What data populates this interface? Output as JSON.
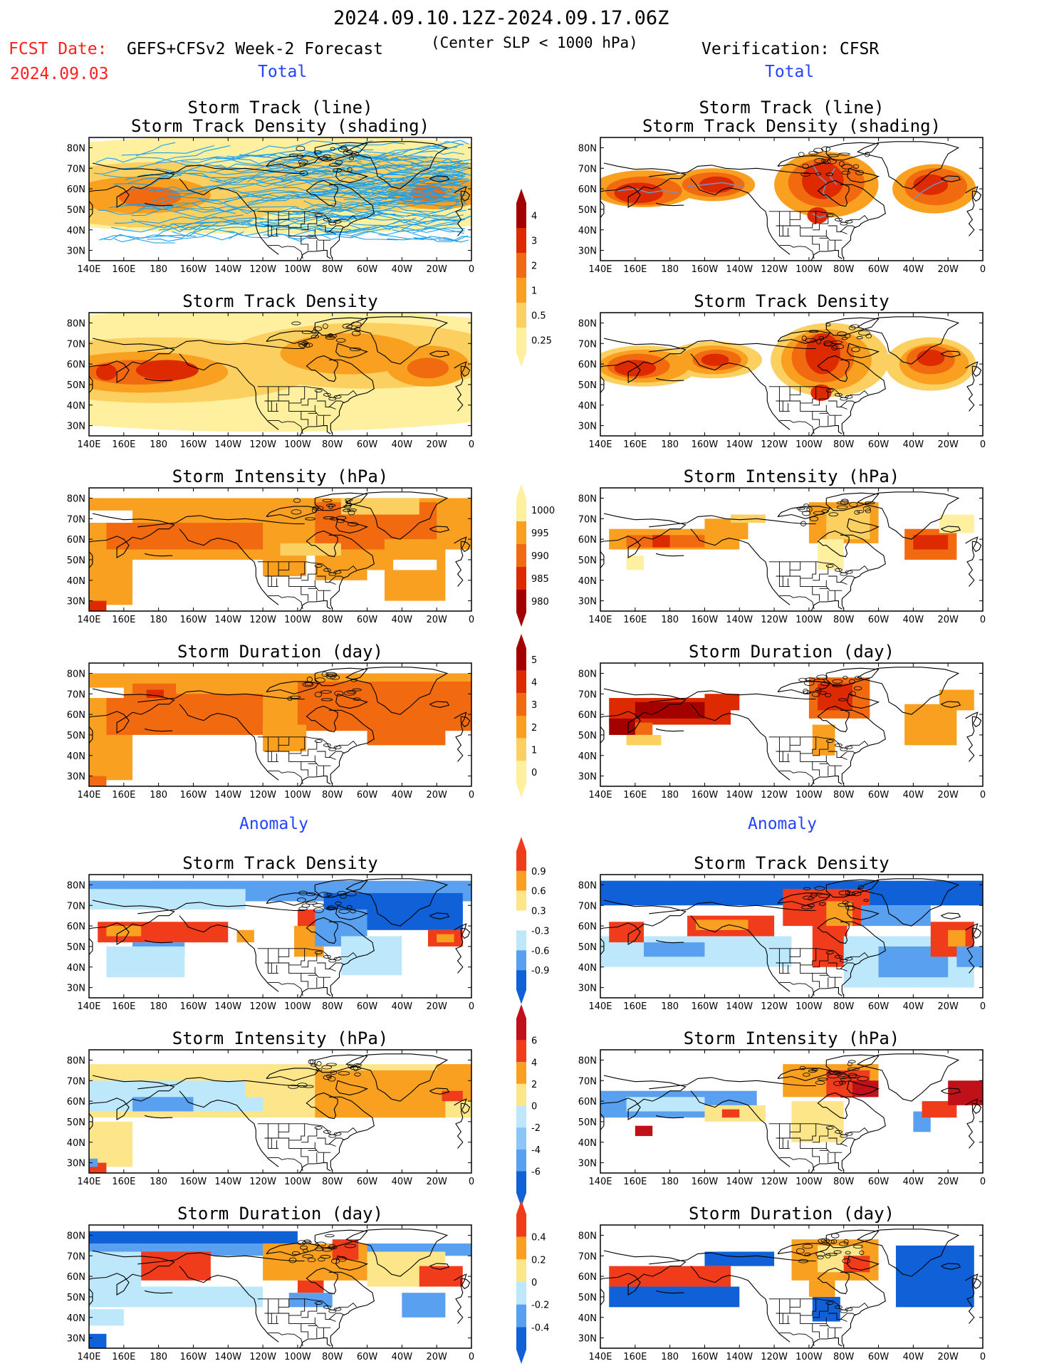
{
  "header": {
    "date_range": "2024.09.10.12Z-2024.09.17.06Z",
    "fcst_label": "FCST Date:",
    "forecast_title": "GEFS+CFSv2 Week-2 Forecast",
    "criterion": "(Center SLP < 1000 hPa)",
    "verification": "Verification: CFSR",
    "fcst_date": "2024.09.03",
    "total_left": "Total",
    "total_right": "Total",
    "anomaly_left": "Anomaly",
    "anomaly_right": "Anomaly"
  },
  "axes": {
    "lon_ticks": [
      "140E",
      "160E",
      "180",
      "160W",
      "140W",
      "120W",
      "100W",
      "80W",
      "60W",
      "40W",
      "20W",
      "0"
    ],
    "lat_ticks": [
      "80N",
      "70N",
      "60N",
      "50N",
      "40N",
      "30N"
    ]
  },
  "panels": [
    {
      "title1": "Storm Track (line)",
      "title2": "Storm Track Density (shading)",
      "col": "forecast",
      "variable": "total_density_tracks"
    },
    {
      "title1": "Storm Track (line)",
      "title2": "Storm Track Density (shading)",
      "col": "verification",
      "variable": "total_density_tracks"
    },
    {
      "title1": "Storm Track Density",
      "col": "forecast",
      "variable": "total_density"
    },
    {
      "title1": "Storm Track Density",
      "col": "verification",
      "variable": "total_density"
    },
    {
      "title1": "Storm Intensity (hPa)",
      "col": "forecast",
      "variable": "total_intensity"
    },
    {
      "title1": "Storm Intensity (hPa)",
      "col": "verification",
      "variable": "total_intensity"
    },
    {
      "title1": "Storm Duration (day)",
      "col": "forecast",
      "variable": "total_duration"
    },
    {
      "title1": "Storm Duration (day)",
      "col": "verification",
      "variable": "total_duration"
    },
    {
      "title1": "Storm Track Density",
      "col": "forecast",
      "variable": "anom_density"
    },
    {
      "title1": "Storm Track Density",
      "col": "verification",
      "variable": "anom_density"
    },
    {
      "title1": "Storm Intensity (hPa)",
      "col": "forecast",
      "variable": "anom_intensity"
    },
    {
      "title1": "Storm Intensity (hPa)",
      "col": "verification",
      "variable": "anom_intensity"
    },
    {
      "title1": "Storm Duration (day)",
      "col": "forecast",
      "variable": "anom_duration"
    },
    {
      "title1": "Storm Duration (day)",
      "col": "verification",
      "variable": "anom_duration"
    }
  ],
  "colorbars": [
    {
      "name": "total-density",
      "labels": [
        "4",
        "3",
        "2",
        "1",
        "0.5",
        "0.25"
      ],
      "colors": [
        "#a30000",
        "#dd2a00",
        "#f26a10",
        "#f9a020",
        "#fcd060",
        "#fff0a0"
      ]
    },
    {
      "name": "total-intensity",
      "labels": [
        "1000",
        "995",
        "990",
        "985",
        "980"
      ],
      "colors": [
        "#fff0a0",
        "#f9a020",
        "#f26a10",
        "#dd2a00",
        "#a30000"
      ]
    },
    {
      "name": "total-duration",
      "labels": [
        "5",
        "4",
        "3",
        "2",
        "1",
        "0"
      ],
      "colors": [
        "#a30000",
        "#dd2a00",
        "#f26a10",
        "#f9a020",
        "#fcd060",
        "#fff0a0"
      ]
    },
    {
      "name": "anomaly-density",
      "labels": [
        "0.9",
        "0.6",
        "0.3",
        "-0.3",
        "-0.6",
        "-0.9"
      ],
      "colors": [
        "#f03c1a",
        "#f9a020",
        "#fde68a",
        "#ffffff",
        "#bde8fb",
        "#5aa0f0",
        "#1060d8"
      ]
    },
    {
      "name": "anomaly-intensity",
      "labels": [
        "6",
        "4",
        "2",
        "0",
        "-2",
        "-4",
        "-6"
      ],
      "colors": [
        "#c0101a",
        "#f03c1a",
        "#f9a020",
        "#fde68a",
        "#bde8fb",
        "#8cc6f6",
        "#5aa0f0",
        "#1060d8"
      ]
    },
    {
      "name": "anomaly-duration",
      "labels": [
        "0.4",
        "0.2",
        "0",
        "-0.2",
        "-0.4"
      ],
      "colors": [
        "#f03c1a",
        "#f9a020",
        "#fde68a",
        "#bde8fb",
        "#5aa0f0",
        "#1060d8"
      ]
    }
  ],
  "palette": {
    "dens": [
      "#fff0a0",
      "#fcd060",
      "#f9a020",
      "#f26a10",
      "#dd2a00",
      "#a30000"
    ],
    "anom": {
      "pos3": "#f03c1a",
      "pos2": "#f9a020",
      "pos1": "#fde68a",
      "neg1": "#bde8fb",
      "neg2": "#5aa0f0",
      "neg3": "#1060d8"
    },
    "track": "#1aa0ee"
  }
}
